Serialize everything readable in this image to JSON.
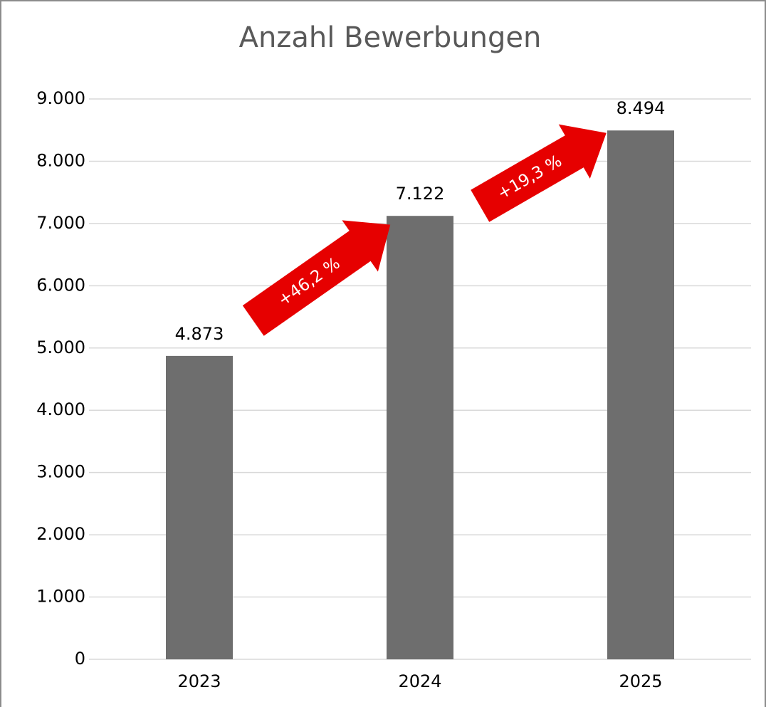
{
  "chart_data": {
    "type": "bar",
    "title": "Anzahl Bewerbungen",
    "categories": [
      "2023",
      "2024",
      "2025"
    ],
    "values": [
      4873,
      7122,
      8494
    ],
    "value_labels": [
      "4.873",
      "7.122",
      "8.494"
    ],
    "color": "#6e6e6e",
    "ylim": [
      0,
      9000
    ],
    "yticks": [
      0,
      {
        "value": 1000,
        "label": "1.000"
      },
      {
        "value": 2000,
        "label": "2.000"
      },
      {
        "value": 3000,
        "label": "3.000"
      },
      {
        "value": 4000,
        "label": "4.000"
      },
      {
        "value": 5000,
        "label": "5.000"
      },
      {
        "value": 6000,
        "label": "6.000"
      },
      {
        "value": 7000,
        "label": "7.000"
      },
      {
        "value": 8000,
        "label": "8.000"
      },
      {
        "value": 9000,
        "label": "9.000"
      }
    ],
    "grid": true,
    "annotations": [
      "+46,2 %",
      "+19,3 %"
    ],
    "annotation_color": "#e60000"
  }
}
